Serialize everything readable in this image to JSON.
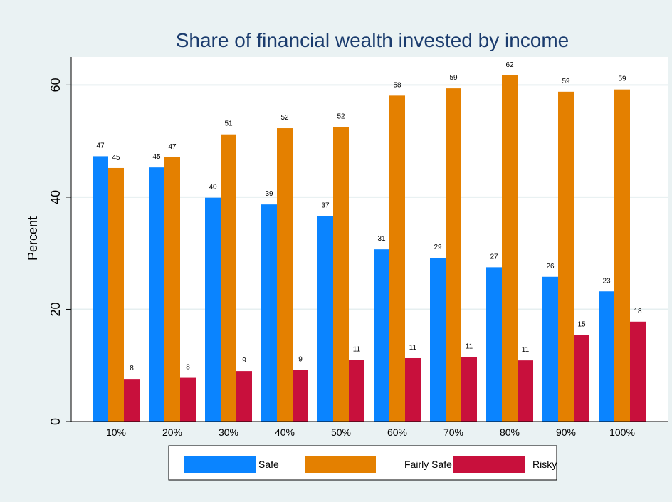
{
  "chart_data": {
    "type": "bar",
    "title": "Share of financial wealth invested by income",
    "xlabel": "",
    "ylabel": "Percent",
    "ylim": [
      0,
      65
    ],
    "yticks": [
      0,
      20,
      40,
      60
    ],
    "grid": true,
    "legend_position": "bottom",
    "categories": [
      "10%",
      "20%",
      "30%",
      "40%",
      "50%",
      "60%",
      "70%",
      "80%",
      "90%",
      "100%"
    ],
    "series": [
      {
        "name": "Safe",
        "color": "#0a84ff",
        "values": [
          47.3,
          45.3,
          39.9,
          38.7,
          36.6,
          30.7,
          29.2,
          27.5,
          25.8,
          23.2
        ],
        "labels": [
          "47",
          "45",
          "40",
          "39",
          "37",
          "31",
          "29",
          "27",
          "26",
          "23"
        ]
      },
      {
        "name": "Fairly Safe",
        "color": "#e48000",
        "values": [
          45.2,
          47.1,
          51.2,
          52.3,
          52.5,
          58.1,
          59.4,
          61.7,
          58.8,
          59.2
        ],
        "labels": [
          "45",
          "47",
          "51",
          "52",
          "52",
          "58",
          "59",
          "62",
          "59",
          "59"
        ]
      },
      {
        "name": "Risky",
        "color": "#c8103c",
        "values": [
          7.6,
          7.8,
          9.0,
          9.2,
          11.0,
          11.3,
          11.5,
          10.9,
          15.4,
          17.8
        ],
        "labels": [
          "8",
          "8",
          "9",
          "9",
          "11",
          "11",
          "11",
          "11",
          "15",
          "18"
        ]
      }
    ]
  }
}
